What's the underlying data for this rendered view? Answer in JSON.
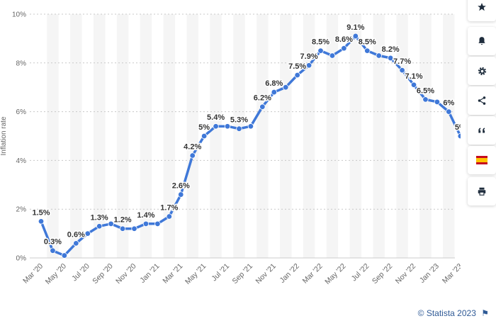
{
  "toolbar": {
    "buttons": [
      {
        "name": "favorite-star-icon"
      },
      {
        "name": "notification-bell-icon"
      },
      {
        "name": "settings-gear-icon"
      },
      {
        "name": "share-icon"
      },
      {
        "name": "citation-quote-icon"
      },
      {
        "name": "language-flag-spain-icon"
      },
      {
        "name": "print-icon"
      }
    ]
  },
  "credit": {
    "text": "© Statista 2023",
    "flag_icon": "flag-icon"
  },
  "chart_data": {
    "type": "line",
    "ylabel": "Inflation rate",
    "ylim": [
      0,
      10
    ],
    "yticks": [
      "0%",
      "2%",
      "4%",
      "6%",
      "8%",
      "10%"
    ],
    "ytick_values": [
      0,
      2,
      4,
      6,
      8,
      10
    ],
    "grid": "horizontal dotted, alternating shaded month columns",
    "xtick_labels": [
      "Mar '20",
      "May '20",
      "Jul '20",
      "Sep '20",
      "Nov '20",
      "Jan '21",
      "Mar '21",
      "May '21",
      "Jul '21",
      "Sep '21",
      "Nov '21",
      "Jan '22",
      "Mar '22",
      "May '22",
      "Jul '22",
      "Sep '22",
      "Nov '22",
      "Jan '23",
      "Mar '23"
    ],
    "categories": [
      "Mar '20",
      "Apr '20",
      "May '20",
      "Jun '20",
      "Jul '20",
      "Aug '20",
      "Sep '20",
      "Oct '20",
      "Nov '20",
      "Dec '20",
      "Jan '21",
      "Feb '21",
      "Mar '21",
      "Apr '21",
      "May '21",
      "Jun '21",
      "Jul '21",
      "Aug '21",
      "Sep '21",
      "Oct '21",
      "Nov '21",
      "Dec '21",
      "Jan '22",
      "Feb '22",
      "Mar '22",
      "Apr '22",
      "May '22",
      "Jun '22",
      "Jul '22",
      "Aug '22",
      "Sep '22",
      "Oct '22",
      "Nov '22",
      "Dec '22",
      "Jan '23",
      "Feb '23",
      "Mar '23"
    ],
    "values": [
      1.5,
      0.3,
      0.1,
      0.6,
      1.0,
      1.3,
      1.4,
      1.2,
      1.2,
      1.4,
      1.4,
      1.7,
      2.6,
      4.2,
      5.0,
      5.4,
      5.4,
      5.3,
      5.4,
      6.2,
      6.8,
      7.0,
      7.5,
      7.9,
      8.5,
      8.3,
      8.6,
      9.1,
      8.5,
      8.3,
      8.2,
      7.7,
      7.1,
      6.5,
      6.4,
      6.0,
      5.0
    ],
    "data_labels": [
      {
        "index": 0,
        "text": "1.5%"
      },
      {
        "index": 1,
        "text": "0.3%"
      },
      {
        "index": 3,
        "text": "0.6%"
      },
      {
        "index": 5,
        "text": "1.3%"
      },
      {
        "index": 7,
        "text": "1.2%"
      },
      {
        "index": 9,
        "text": "1.4%"
      },
      {
        "index": 11,
        "text": "1.7%"
      },
      {
        "index": 12,
        "text": "2.6%"
      },
      {
        "index": 13,
        "text": "4.2%"
      },
      {
        "index": 14,
        "text": "5%"
      },
      {
        "index": 15,
        "text": "5.4%"
      },
      {
        "index": 17,
        "text": "5.3%"
      },
      {
        "index": 19,
        "text": "6.2%"
      },
      {
        "index": 20,
        "text": "6.8%"
      },
      {
        "index": 22,
        "text": "7.5%"
      },
      {
        "index": 23,
        "text": "7.9%"
      },
      {
        "index": 24,
        "text": "8.5%"
      },
      {
        "index": 26,
        "text": "8.6%"
      },
      {
        "index": 27,
        "text": "9.1%"
      },
      {
        "index": 28,
        "text": "8.5%"
      },
      {
        "index": 30,
        "text": "8.2%"
      },
      {
        "index": 31,
        "text": "7.7%"
      },
      {
        "index": 32,
        "text": "7.1%"
      },
      {
        "index": 33,
        "text": "6.5%"
      },
      {
        "index": 35,
        "text": "6%"
      },
      {
        "index": 36,
        "text": "5%"
      }
    ],
    "colors": {
      "line": "#3f78d8",
      "label": "#333333",
      "axis_text": "#666666",
      "band": "#f5f5f5",
      "grid": "#c8c8c8"
    }
  }
}
